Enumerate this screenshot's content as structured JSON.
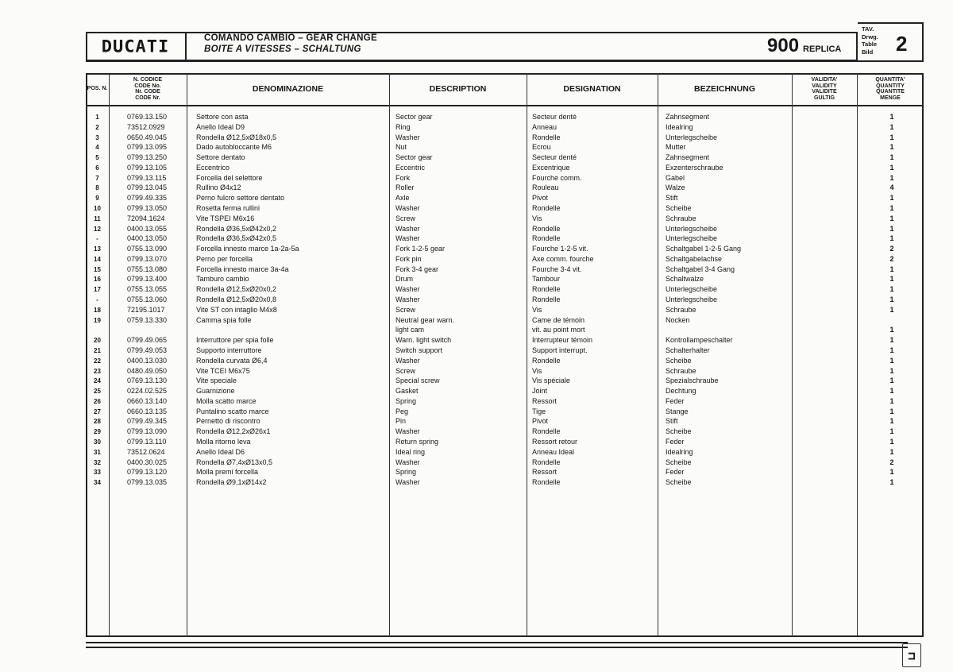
{
  "header": {
    "brand": "DUCATI",
    "title_line1": "COMANDO CAMBIO  –  GEAR CHANGE",
    "title_line2": "BOITE A VITESSES  –  SCHALTUNG",
    "model_number": "900",
    "model_name": "REPLICA",
    "table_labels": [
      "TAV.",
      "Drwg.",
      "Table",
      "Bild"
    ],
    "table_number": "2"
  },
  "columns": {
    "pos": "POS. N.",
    "code": "N. CODICE CODE No. Nr. CODE CODE Nr.",
    "denominazione": "DENOMINAZIONE",
    "description": "DESCRIPTION",
    "designation": "DESIGNATION",
    "bezeichnung": "BEZEICHNUNG",
    "validity": "VALIDITA' VALIDITY VALIDITE GULTIG",
    "quantity": "QUANTITA' QUANTITY QUANTITE MENGE"
  },
  "rows": [
    {
      "pos": "1",
      "code": "0769.13.150",
      "den": "Settore con asta",
      "desc": "Sector gear",
      "des": "Secteur denté",
      "bez": "Zahnsegment",
      "qty": "1"
    },
    {
      "pos": "2",
      "code": "73512.0929",
      "den": "Anello Ideal D9",
      "desc": "Ring",
      "des": "Anneau",
      "bez": "Idealring",
      "qty": "1"
    },
    {
      "pos": "3",
      "code": "0650.49.045",
      "den": "Rondella Ø12,5xØ18x0,5",
      "desc": "Washer",
      "des": "Rondelle",
      "bez": "Unterlegscheibe",
      "qty": "1"
    },
    {
      "pos": "4",
      "code": "0799.13.095",
      "den": "Dado autobloccante M6",
      "desc": "Nut",
      "des": "Ecrou",
      "bez": "Mutter",
      "qty": "1"
    },
    {
      "pos": "5",
      "code": "0799.13.250",
      "den": "Settore dentato",
      "desc": "Sector gear",
      "des": "Secteur denté",
      "bez": "Zahnsegment",
      "qty": "1"
    },
    {
      "pos": "6",
      "code": "0799.13.105",
      "den": "Eccentrico",
      "desc": "Eccentric",
      "des": "Excentrique",
      "bez": "Exzenterschraube",
      "qty": "1"
    },
    {
      "pos": "7",
      "code": "0799.13.115",
      "den": "Forcella del selettore",
      "desc": "Fork",
      "des": "Fourche comm.",
      "bez": "Gabel",
      "qty": "1"
    },
    {
      "pos": "8",
      "code": "0799.13.045",
      "den": "Rullino Ø4x12",
      "desc": "Roller",
      "des": "Rouleau",
      "bez": "Walze",
      "qty": "4"
    },
    {
      "pos": "9",
      "code": "0799.49.335",
      "den": "Perno fulcro settore dentato",
      "desc": "Axle",
      "des": "Pivot",
      "bez": "Stift",
      "qty": "1"
    },
    {
      "pos": "10",
      "code": "0799.13.050",
      "den": "Rosetta ferma rullini",
      "desc": "Washer",
      "des": "Rondelle",
      "bez": "Scheibe",
      "qty": "1"
    },
    {
      "pos": "11",
      "code": "72094.1624",
      "den": "Vite TSPEI M6x16",
      "desc": "Screw",
      "des": "Vis",
      "bez": "Schraube",
      "qty": "1"
    },
    {
      "pos": "12",
      "code": "0400.13.055",
      "den": "Rondella Ø36,5xØ42x0,2",
      "desc": "Washer",
      "des": "Rondelle",
      "bez": "Unterlegscheibe",
      "qty": "1"
    },
    {
      "pos": "-",
      "code": "0400.13.050",
      "den": "Rondella Ø36,5xØ42x0,5",
      "desc": "Washer",
      "des": "Rondelle",
      "bez": "Unterlegscheibe",
      "qty": "1"
    },
    {
      "pos": "13",
      "code": "0755.13.090",
      "den": "Forcella innesto marce 1a-2a-5a",
      "desc": "Fork 1-2-5 gear",
      "des": "Fourche 1-2-5 vit.",
      "bez": "Schaltgabel 1-2-5 Gang",
      "qty": "2"
    },
    {
      "pos": "14",
      "code": "0799.13.070",
      "den": "Perno per forcella",
      "desc": "Fork pin",
      "des": "Axe comm. fourche",
      "bez": "Schaltgabelachse",
      "qty": "2"
    },
    {
      "pos": "15",
      "code": "0755.13.080",
      "den": "Forcella innesto marce 3a-4a",
      "desc": "Fork 3-4 gear",
      "des": "Fourche 3-4 vit.",
      "bez": "Schaltgabel 3-4 Gang",
      "qty": "1"
    },
    {
      "pos": "16",
      "code": "0799.13.400",
      "den": "Tamburo cambio",
      "desc": "Drum",
      "des": "Tambour",
      "bez": "Schaltwalze",
      "qty": "1"
    },
    {
      "pos": "17",
      "code": "0755.13.055",
      "den": "Rondella Ø12,5xØ20x0,2",
      "desc": "Washer",
      "des": "Rondelle",
      "bez": "Unterlegscheibe",
      "qty": "1"
    },
    {
      "pos": "-",
      "code": "0755.13.060",
      "den": "Rondella Ø12,5xØ20x0,8",
      "desc": "Washer",
      "des": "Rondelle",
      "bez": "Unterlegscheibe",
      "qty": "1"
    },
    {
      "pos": "18",
      "code": "72195.1017",
      "den": "Vite ST con intaglio M4x8",
      "desc": "Screw",
      "des": "Vis",
      "bez": "Schraube",
      "qty": "1"
    },
    {
      "pos": "19",
      "code": "0759.13.330",
      "den": "Camma spia folle",
      "desc": "Neutral gear warn.",
      "des": "Came de témoin",
      "bez": "Nocken",
      "qty": ""
    },
    {
      "pos": "",
      "code": "",
      "den": "",
      "desc": "light cam",
      "des": "vit. au point mort",
      "bez": "",
      "qty": "1"
    },
    {
      "pos": "20",
      "code": "0799.49.065",
      "den": "Interruttore per spia folle",
      "desc": "Warn. light switch",
      "des": "Interrupteur témoin",
      "bez": "Kontrollampeschalter",
      "qty": "1"
    },
    {
      "pos": "21",
      "code": "0799.49.053",
      "den": "Supporto interruttore",
      "desc": "Switch support",
      "des": "Support interrupt.",
      "bez": "Schalterhalter",
      "qty": "1"
    },
    {
      "pos": "22",
      "code": "0400.13.030",
      "den": "Rondella curvata Ø6,4",
      "desc": "Washer",
      "des": "Rondelle",
      "bez": "Scheibe",
      "qty": "1"
    },
    {
      "pos": "23",
      "code": "0480.49.050",
      "den": "Vite TCEI M6x75",
      "desc": "Screw",
      "des": "Vis",
      "bez": "Schraube",
      "qty": "1"
    },
    {
      "pos": "24",
      "code": "0769.13.130",
      "den": "Vite speciale",
      "desc": "Special screw",
      "des": "Vis spéciale",
      "bez": "Spezialschraube",
      "qty": "1"
    },
    {
      "pos": "25",
      "code": "0224.02.525",
      "den": "Guarnizione",
      "desc": "Gasket",
      "des": "Joint",
      "bez": "Dechtung",
      "qty": "1"
    },
    {
      "pos": "26",
      "code": "0660.13.140",
      "den": "Molla scatto marce",
      "desc": "Spring",
      "des": "Ressort",
      "bez": "Feder",
      "qty": "1"
    },
    {
      "pos": "27",
      "code": "0660.13.135",
      "den": "Puntalino scatto marce",
      "desc": "Peg",
      "des": "Tige",
      "bez": "Stange",
      "qty": "1"
    },
    {
      "pos": "28",
      "code": "0799.49.345",
      "den": "Pernetto di riscontro",
      "desc": "Pin",
      "des": "Pivot",
      "bez": "Stift",
      "qty": "1"
    },
    {
      "pos": "29",
      "code": "0799.13.090",
      "den": "Rondella Ø12,2xØ26x1",
      "desc": "Washer",
      "des": "Rondelle",
      "bez": "Scheibe",
      "qty": "1"
    },
    {
      "pos": "30",
      "code": "0799.13.110",
      "den": "Molla ritorno leva",
      "desc": "Return spring",
      "des": "Ressort retour",
      "bez": "Feder",
      "qty": "1"
    },
    {
      "pos": "31",
      "code": "73512.0624",
      "den": "Anello Ideal D6",
      "desc": "Ideal ring",
      "des": "Anneau Ideal",
      "bez": "Idealring",
      "qty": "1"
    },
    {
      "pos": "32",
      "code": "0400.30.025",
      "den": "Rondella Ø7,4xØ13x0,5",
      "desc": "Washer",
      "des": "Rondelle",
      "bez": "Scheibe",
      "qty": "2"
    },
    {
      "pos": "33",
      "code": "0799.13.120",
      "den": "Molla premi forcella",
      "desc": "Spring",
      "des": "Ressort",
      "bez": "Feder",
      "qty": "1"
    },
    {
      "pos": "34",
      "code": "0799.13.035",
      "den": "Rondella Ø9,1xØ14x2",
      "desc": "Washer",
      "des": "Rondelle",
      "bez": "Scheibe",
      "qty": "1"
    }
  ]
}
